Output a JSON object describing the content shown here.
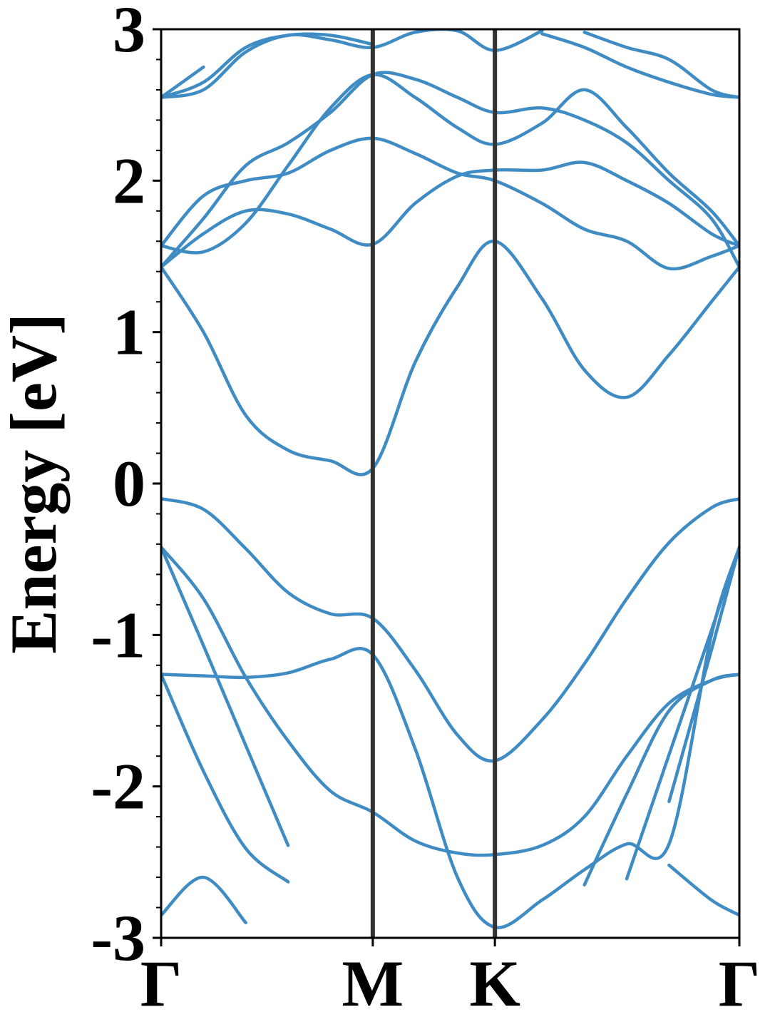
{
  "chart_data": {
    "type": "line",
    "ylabel": "Energy [eV]",
    "color": "#3f8bc3",
    "path_line_color": "#333333",
    "path_lines": true,
    "xlim": [
      0,
      2.732
    ],
    "xticks": [
      {
        "value": 0,
        "label": "Γ"
      },
      {
        "value": 1,
        "label": "M"
      },
      {
        "value": 1.577,
        "label": "K"
      },
      {
        "value": 2.732,
        "label": "Γ"
      }
    ],
    "ylim": [
      -3,
      3
    ],
    "yticks": [
      -3,
      -2,
      -1,
      0,
      1,
      2,
      3
    ],
    "yminorticks": [
      -2.8,
      -2.6,
      -2.4,
      -2.2,
      -1.8,
      -1.6,
      -1.4,
      -1.2,
      -0.8,
      -0.6,
      -0.4,
      -0.2,
      0.2,
      0.4,
      0.6,
      0.8,
      1.2,
      1.4,
      1.6,
      1.8,
      2.2,
      2.4,
      2.6,
      2.8
    ],
    "x": [
      0,
      0.2,
      0.4,
      0.6,
      0.8,
      1,
      1.2,
      1.4,
      1.577,
      1.8,
      2,
      2.2,
      2.4,
      2.6,
      2.732
    ],
    "series": [
      {
        "values": [
          -0.1,
          -0.17,
          -0.43,
          -0.72,
          -0.86,
          -0.89,
          -1.23,
          -1.66,
          -1.83,
          -1.56,
          -1.19,
          -0.76,
          -0.39,
          -0.16,
          -0.1
        ]
      },
      {
        "values": [
          -0.42,
          -0.76,
          -1.28,
          -1.7,
          -2.03,
          -2.17,
          -2.36,
          -2.44,
          -2.45,
          -2.39,
          -2.2,
          -1.8,
          -1.45,
          -1.3,
          -1.26
        ]
      },
      {
        "values": [
          -1.26,
          -1.27,
          -1.28,
          -1.25,
          -1.16,
          -1.13,
          -1.75,
          -2.6,
          -2.93,
          -2.75,
          -2.55,
          -2.38,
          -2.38,
          -1.0,
          -0.42
        ]
      },
      {
        "values": [
          -0.42,
          -1.07,
          -1.73,
          -2.39,
          null,
          null,
          null,
          null,
          null,
          null,
          null,
          -2.61,
          -1.79,
          -0.97,
          -0.42
        ]
      },
      {
        "values": [
          -1.26,
          -1.9,
          -2.41,
          -2.63,
          null,
          null,
          null,
          null,
          null,
          null,
          -2.65,
          -2.05,
          -1.5,
          -1.3,
          -1.26
        ]
      },
      {
        "values": [
          -2.85,
          -2.6,
          -2.9,
          null,
          null,
          null,
          null,
          null,
          null,
          null,
          null,
          null,
          -2.52,
          -2.75,
          -2.85
        ]
      },
      {
        "values": [
          null,
          null,
          null,
          null,
          null,
          null,
          null,
          null,
          null,
          null,
          null,
          null,
          -2.1,
          -1.1,
          -0.42
        ]
      },
      {
        "values": [
          1.43,
          1.0,
          0.45,
          0.22,
          0.15,
          0.1,
          0.8,
          1.3,
          1.6,
          1.22,
          0.75,
          0.57,
          0.85,
          1.2,
          1.43
        ]
      },
      {
        "values": [
          1.43,
          1.65,
          1.8,
          1.78,
          1.68,
          1.58,
          1.85,
          2.03,
          2.07,
          2.07,
          2.12,
          2.0,
          1.85,
          1.65,
          1.57
        ]
      },
      {
        "values": [
          1.57,
          1.9,
          2.0,
          2.05,
          2.2,
          2.28,
          2.18,
          2.05,
          2.0,
          1.85,
          1.68,
          1.6,
          1.42,
          1.5,
          1.57
        ]
      },
      {
        "values": [
          1.43,
          1.75,
          2.1,
          2.25,
          2.45,
          2.7,
          2.67,
          2.55,
          2.45,
          2.48,
          2.4,
          2.25,
          2.0,
          1.75,
          1.43
        ]
      },
      {
        "values": [
          1.57,
          1.53,
          1.72,
          2.1,
          2.48,
          2.7,
          2.55,
          2.35,
          2.24,
          2.38,
          2.6,
          2.35,
          2.05,
          1.8,
          1.57
        ]
      },
      {
        "values": [
          2.55,
          2.6,
          2.85,
          2.96,
          2.93,
          2.88,
          2.98,
          2.99,
          2.86,
          2.99,
          null,
          null,
          null,
          null,
          null
        ]
      },
      {
        "values": [
          2.55,
          2.75,
          null,
          null,
          null,
          null,
          null,
          null,
          null,
          null,
          2.98,
          2.88,
          2.8,
          2.6,
          2.55
        ]
      },
      {
        "values": [
          2.55,
          2.65,
          2.88,
          2.96,
          2.96,
          2.9,
          null,
          null,
          null,
          2.97,
          2.88,
          2.75,
          2.65,
          2.57,
          2.55
        ]
      }
    ]
  }
}
